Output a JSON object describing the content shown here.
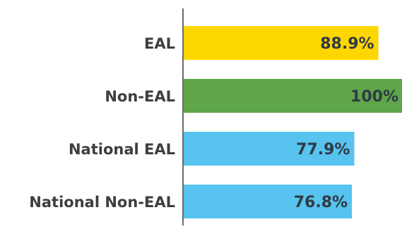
{
  "chart_data": {
    "type": "bar",
    "orientation": "horizontal",
    "categories": [
      "EAL",
      "Non-EAL",
      "National EAL",
      "National Non-EAL"
    ],
    "values": [
      88.9,
      100,
      77.9,
      76.8
    ],
    "value_labels": [
      "88.9%",
      "100%",
      "77.9%",
      "76.8%"
    ],
    "colors": [
      "#ffd700",
      "#5fa54a",
      "#57c3ee",
      "#57c3ee"
    ],
    "xlim": [
      0,
      100
    ],
    "grid": false,
    "title": "",
    "xlabel": "",
    "ylabel": ""
  }
}
